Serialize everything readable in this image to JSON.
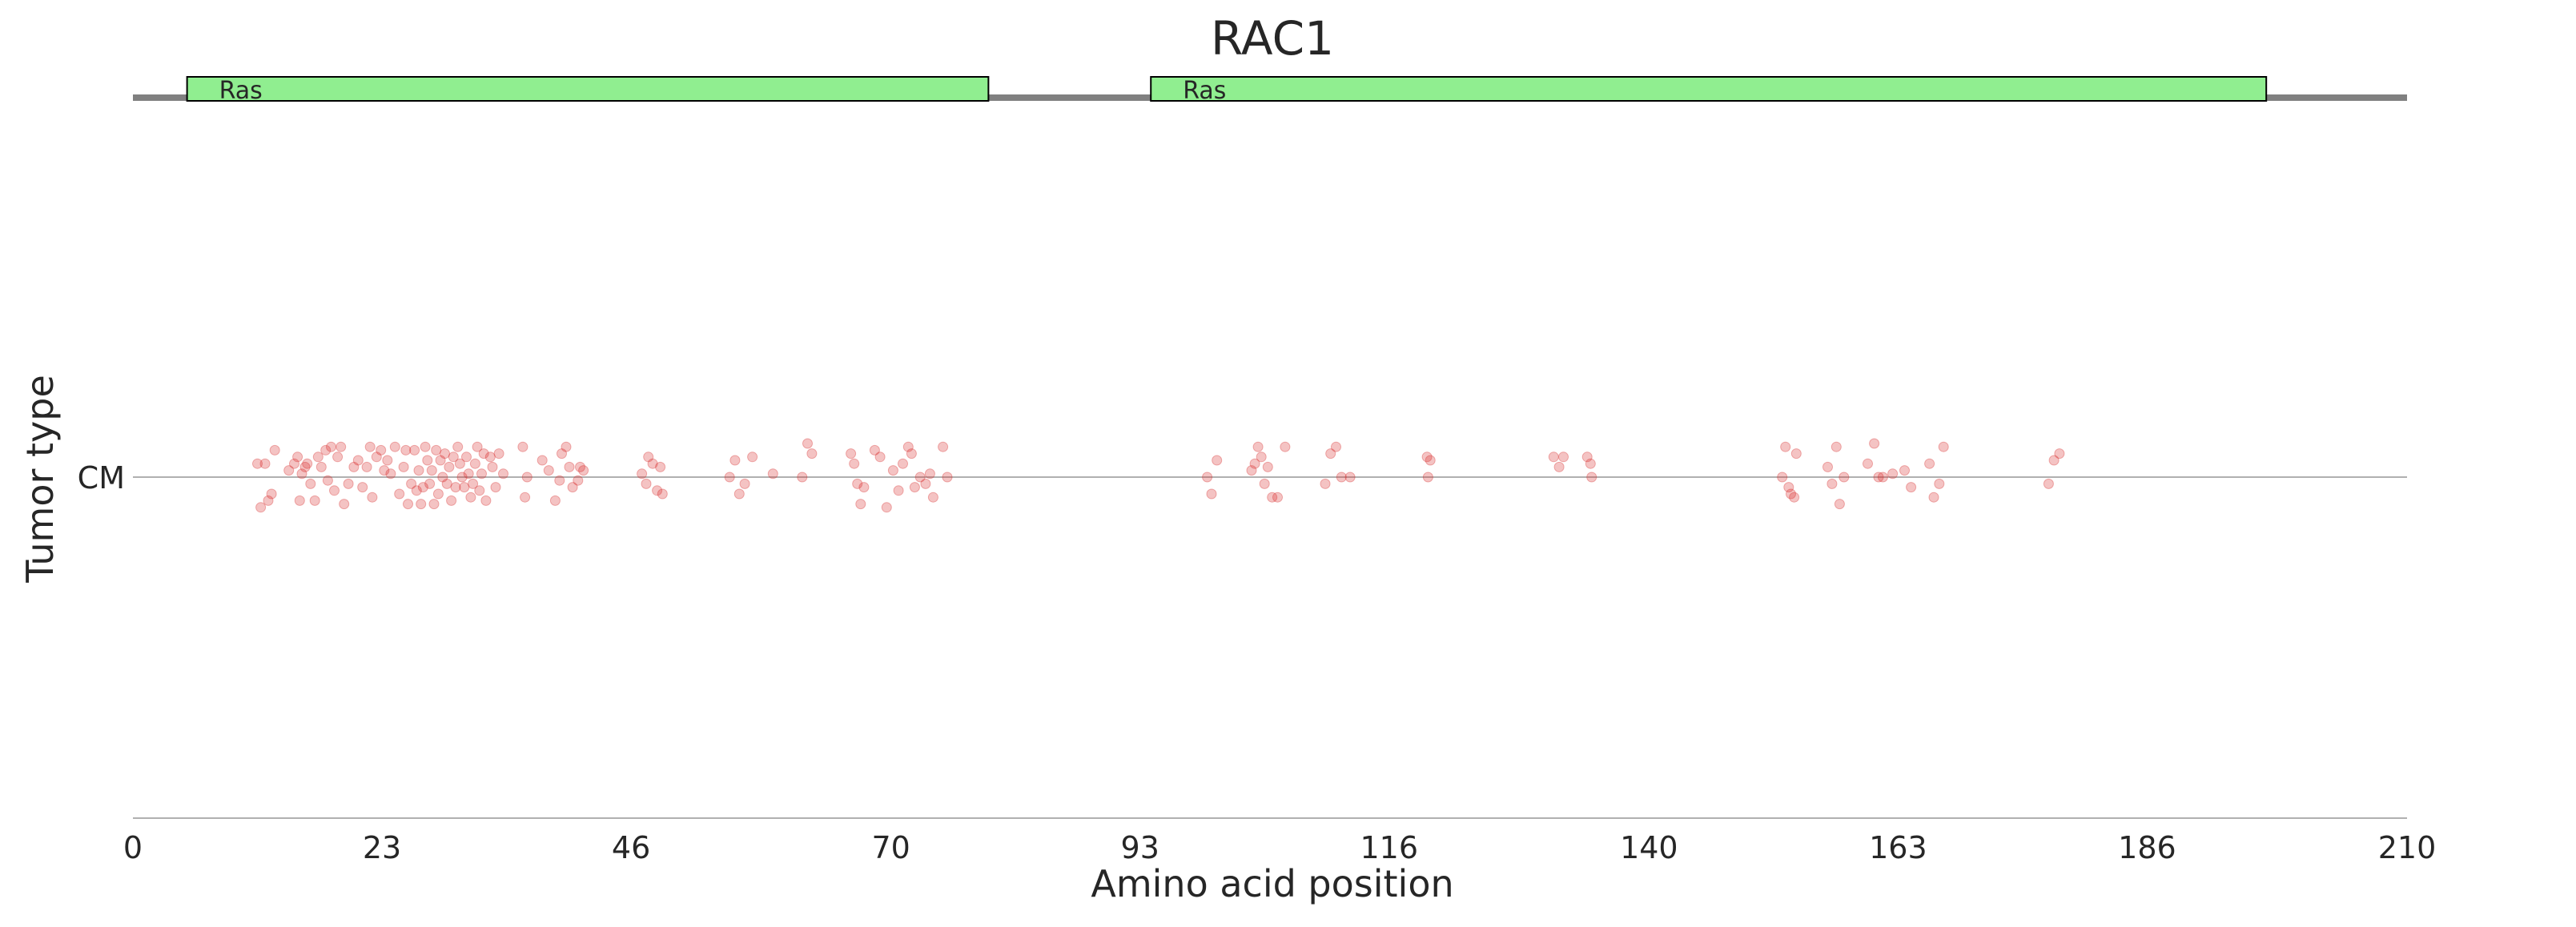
{
  "chart_data": {
    "type": "scatter",
    "title": "RAC1",
    "xlabel": "Amino acid position",
    "ylabel": "Tumor type",
    "xlim": [
      0,
      210
    ],
    "xticks": [
      0,
      23,
      46,
      70,
      93,
      116,
      140,
      163,
      186,
      210
    ],
    "categories": [
      "CM"
    ],
    "protein_length": 210,
    "domains": [
      {
        "label": "Ras",
        "start": 5,
        "end": 79
      },
      {
        "label": "Ras",
        "start": 94,
        "end": 197
      }
    ],
    "point_color": "#d62728",
    "domain_color": "#90ee90",
    "series": [
      {
        "category": "CM",
        "points": [
          [
            11.5,
            0.04
          ],
          [
            12.2,
            0.04
          ],
          [
            11.8,
            -0.09
          ],
          [
            12.5,
            -0.07
          ],
          [
            12.8,
            -0.05
          ],
          [
            13.1,
            0.08
          ],
          [
            14.4,
            0.02
          ],
          [
            14.9,
            0.04
          ],
          [
            15.2,
            0.06
          ],
          [
            15.4,
            -0.07
          ],
          [
            15.6,
            0.01
          ],
          [
            15.9,
            0.03
          ],
          [
            16.1,
            0.04
          ],
          [
            16.4,
            -0.02
          ],
          [
            16.8,
            -0.07
          ],
          [
            17.1,
            0.06
          ],
          [
            17.4,
            0.03
          ],
          [
            17.8,
            0.08
          ],
          [
            18.0,
            -0.01
          ],
          [
            18.3,
            0.09
          ],
          [
            18.6,
            -0.04
          ],
          [
            18.9,
            0.06
          ],
          [
            19.2,
            0.09
          ],
          [
            19.5,
            -0.08
          ],
          [
            19.9,
            -0.02
          ],
          [
            20.4,
            0.03
          ],
          [
            20.8,
            0.05
          ],
          [
            21.2,
            -0.03
          ],
          [
            21.6,
            0.03
          ],
          [
            21.9,
            0.09
          ],
          [
            22.1,
            -0.06
          ],
          [
            22.5,
            0.06
          ],
          [
            22.9,
            0.08
          ],
          [
            23.2,
            0.02
          ],
          [
            23.5,
            0.05
          ],
          [
            23.8,
            0.01
          ],
          [
            24.2,
            0.09
          ],
          [
            24.6,
            -0.05
          ],
          [
            25.0,
            0.03
          ],
          [
            25.2,
            0.08
          ],
          [
            25.4,
            -0.08
          ],
          [
            25.7,
            -0.02
          ],
          [
            26.0,
            0.08
          ],
          [
            26.2,
            -0.04
          ],
          [
            26.4,
            0.02
          ],
          [
            26.6,
            -0.08
          ],
          [
            26.8,
            -0.03
          ],
          [
            27.0,
            0.09
          ],
          [
            27.2,
            0.05
          ],
          [
            27.4,
            -0.02
          ],
          [
            27.6,
            0.02
          ],
          [
            27.8,
            -0.08
          ],
          [
            28.0,
            0.08
          ],
          [
            28.2,
            -0.05
          ],
          [
            28.4,
            0.05
          ],
          [
            28.6,
            0.0
          ],
          [
            28.8,
            0.07
          ],
          [
            29.0,
            -0.02
          ],
          [
            29.2,
            0.03
          ],
          [
            29.4,
            -0.07
          ],
          [
            29.6,
            0.06
          ],
          [
            29.8,
            -0.03
          ],
          [
            30.0,
            0.09
          ],
          [
            30.2,
            0.04
          ],
          [
            30.4,
            0.0
          ],
          [
            30.6,
            -0.03
          ],
          [
            30.8,
            0.06
          ],
          [
            31.0,
            0.01
          ],
          [
            31.2,
            -0.06
          ],
          [
            31.4,
            -0.02
          ],
          [
            31.6,
            0.04
          ],
          [
            31.8,
            0.09
          ],
          [
            32.0,
            -0.04
          ],
          [
            32.2,
            0.01
          ],
          [
            32.4,
            0.07
          ],
          [
            32.6,
            -0.07
          ],
          [
            33.0,
            0.06
          ],
          [
            33.2,
            0.03
          ],
          [
            33.5,
            -0.03
          ],
          [
            33.8,
            0.07
          ],
          [
            34.2,
            0.01
          ],
          [
            36.0,
            0.09
          ],
          [
            36.2,
            -0.06
          ],
          [
            36.4,
            0.0
          ],
          [
            37.8,
            0.05
          ],
          [
            38.4,
            0.02
          ],
          [
            39.0,
            -0.07
          ],
          [
            39.4,
            -0.01
          ],
          [
            39.6,
            0.07
          ],
          [
            40.0,
            0.09
          ],
          [
            40.3,
            0.03
          ],
          [
            40.6,
            -0.03
          ],
          [
            41.1,
            -0.01
          ],
          [
            41.3,
            0.03
          ],
          [
            41.6,
            0.02
          ],
          [
            47.0,
            0.01
          ],
          [
            47.4,
            -0.02
          ],
          [
            47.6,
            0.06
          ],
          [
            48.0,
            0.04
          ],
          [
            48.4,
            -0.04
          ],
          [
            48.7,
            0.03
          ],
          [
            48.9,
            -0.05
          ],
          [
            55.1,
            0.0
          ],
          [
            55.6,
            0.05
          ],
          [
            56.0,
            -0.05
          ],
          [
            56.5,
            -0.02
          ],
          [
            57.2,
            0.06
          ],
          [
            59.1,
            0.01
          ],
          [
            61.8,
            0.0
          ],
          [
            62.3,
            0.1
          ],
          [
            62.7,
            0.07
          ],
          [
            66.3,
            0.07
          ],
          [
            66.6,
            0.04
          ],
          [
            66.9,
            -0.02
          ],
          [
            67.2,
            -0.08
          ],
          [
            67.5,
            -0.03
          ],
          [
            68.5,
            0.08
          ],
          [
            69.0,
            0.06
          ],
          [
            69.6,
            -0.09
          ],
          [
            70.2,
            0.02
          ],
          [
            70.7,
            -0.04
          ],
          [
            71.1,
            0.04
          ],
          [
            71.6,
            0.09
          ],
          [
            71.9,
            0.07
          ],
          [
            72.2,
            -0.03
          ],
          [
            72.7,
            -0.0
          ],
          [
            73.2,
            -0.02
          ],
          [
            73.6,
            0.01
          ],
          [
            73.9,
            -0.06
          ],
          [
            74.8,
            0.09
          ],
          [
            75.2,
            0.0
          ],
          [
            99.2,
            -0.0
          ],
          [
            99.6,
            -0.05
          ],
          [
            100.1,
            0.05
          ],
          [
            103.3,
            0.02
          ],
          [
            103.6,
            0.04
          ],
          [
            103.9,
            0.09
          ],
          [
            104.2,
            0.06
          ],
          [
            104.5,
            -0.02
          ],
          [
            104.8,
            0.03
          ],
          [
            105.2,
            -0.06
          ],
          [
            105.7,
            -0.06
          ],
          [
            106.4,
            0.09
          ],
          [
            110.1,
            -0.02
          ],
          [
            110.6,
            0.07
          ],
          [
            111.1,
            0.09
          ],
          [
            111.6,
            0.0
          ],
          [
            112.4,
            0.0
          ],
          [
            119.5,
            0.06
          ],
          [
            119.8,
            0.05
          ],
          [
            119.6,
            0.0
          ],
          [
            131.2,
            0.06
          ],
          [
            131.7,
            0.03
          ],
          [
            132.1,
            0.06
          ],
          [
            134.3,
            0.06
          ],
          [
            134.6,
            0.04
          ],
          [
            134.7,
            0.0
          ],
          [
            152.3,
            0.0
          ],
          [
            152.6,
            0.09
          ],
          [
            152.9,
            -0.03
          ],
          [
            153.1,
            -0.05
          ],
          [
            153.4,
            -0.06
          ],
          [
            153.6,
            0.07
          ],
          [
            156.5,
            0.03
          ],
          [
            156.9,
            -0.02
          ],
          [
            157.3,
            0.09
          ],
          [
            157.6,
            -0.08
          ],
          [
            158.0,
            0.0
          ],
          [
            160.2,
            0.04
          ],
          [
            160.8,
            0.1
          ],
          [
            161.2,
            -0.0
          ],
          [
            161.6,
            -0.0
          ],
          [
            162.5,
            0.01
          ],
          [
            163.6,
            0.02
          ],
          [
            164.2,
            -0.03
          ],
          [
            165.9,
            0.04
          ],
          [
            166.3,
            -0.06
          ],
          [
            166.8,
            -0.02
          ],
          [
            167.2,
            0.09
          ],
          [
            176.9,
            -0.02
          ],
          [
            177.4,
            0.05
          ],
          [
            177.9,
            0.07
          ]
        ]
      }
    ]
  }
}
